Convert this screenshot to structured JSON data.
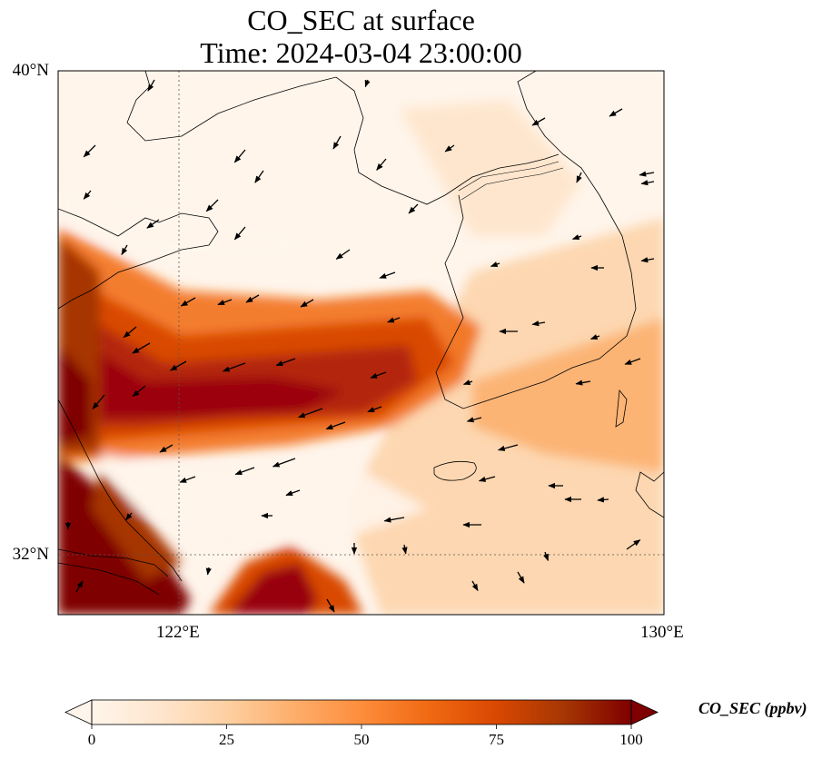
{
  "title": {
    "line1": "CO_SEC at surface",
    "line2": "Time: 2024-03-04 23:00:00"
  },
  "map": {
    "lon_range": [
      118,
      130
    ],
    "lat_range": [
      30.8,
      40
    ],
    "lat_ticks": [
      {
        "value": 40,
        "label": "40°N"
      },
      {
        "value": 32,
        "label": "32°N"
      }
    ],
    "lon_ticks": [
      {
        "value": 122,
        "label": "122°E"
      },
      {
        "value": 130,
        "label": "130°E"
      }
    ],
    "gridlines": "dotted"
  },
  "colorbar": {
    "label": "CO_SEC (ppbv)",
    "min": 0,
    "max": 100,
    "extend": "both",
    "ticks": [
      {
        "value": 0,
        "label": "0"
      },
      {
        "value": 25,
        "label": "25"
      },
      {
        "value": 50,
        "label": "50"
      },
      {
        "value": 75,
        "label": "75"
      },
      {
        "value": 100,
        "label": "100"
      }
    ],
    "colors": [
      "#fff5eb",
      "#fee6ce",
      "#fdd0a2",
      "#fdae6b",
      "#fd8d3c",
      "#f16913",
      "#d94801",
      "#a63603",
      "#7f0000"
    ]
  },
  "field_description": "Concentration field: high values along the west edge and a plume extending east across the Yellow Sea toward the Korean Peninsula",
  "wind_vectors_present": true
}
